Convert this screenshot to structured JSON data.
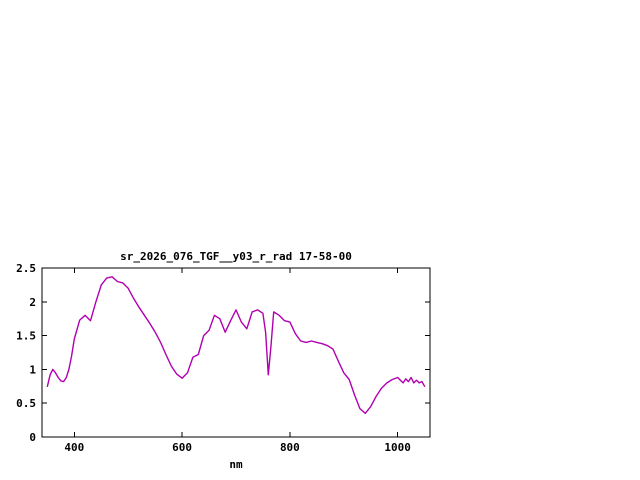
{
  "page": {
    "background": "#ffffff"
  },
  "chart": {
    "title": "sr_2026_076_TGF__y03_r_rad 17-58-00",
    "xlabel": "nm",
    "colors": {
      "line": "#b000b0",
      "axis": "#000000",
      "text": "#000000"
    }
  },
  "chart_data": {
    "type": "line",
    "title": "sr_2026_076_TGF__y03_r_rad 17-58-00",
    "xlabel": "nm",
    "ylabel": "",
    "xlim": [
      340,
      1060
    ],
    "ylim": [
      0,
      2.5
    ],
    "grid": false,
    "legend": "none",
    "xticks": {
      "values": [
        400,
        600,
        800,
        1000
      ],
      "labels": [
        "400",
        "600",
        "800",
        "1000"
      ]
    },
    "yticks": {
      "values": [
        0,
        0.5,
        1,
        1.5,
        2,
        2.5
      ],
      "labels": [
        "0",
        "0.5",
        "1",
        "1.5",
        "2",
        "2.5"
      ]
    },
    "x": [
      350,
      355,
      360,
      365,
      370,
      375,
      380,
      385,
      390,
      395,
      400,
      410,
      420,
      430,
      440,
      450,
      460,
      470,
      480,
      490,
      500,
      510,
      520,
      530,
      540,
      550,
      560,
      570,
      580,
      590,
      600,
      610,
      620,
      630,
      640,
      650,
      660,
      670,
      680,
      690,
      700,
      710,
      720,
      730,
      740,
      750,
      755,
      760,
      765,
      770,
      780,
      790,
      800,
      810,
      820,
      830,
      840,
      850,
      860,
      870,
      880,
      890,
      900,
      910,
      920,
      930,
      940,
      950,
      960,
      970,
      980,
      990,
      1000,
      1005,
      1010,
      1015,
      1020,
      1025,
      1030,
      1035,
      1040,
      1045,
      1050
    ],
    "y": [
      0.75,
      0.92,
      1.0,
      0.95,
      0.88,
      0.83,
      0.82,
      0.88,
      1.0,
      1.2,
      1.45,
      1.73,
      1.8,
      1.72,
      2.0,
      2.25,
      2.35,
      2.37,
      2.3,
      2.28,
      2.2,
      2.05,
      1.92,
      1.8,
      1.68,
      1.55,
      1.4,
      1.22,
      1.05,
      0.93,
      0.87,
      0.95,
      1.18,
      1.22,
      1.5,
      1.58,
      1.8,
      1.75,
      1.55,
      1.72,
      1.88,
      1.7,
      1.6,
      1.85,
      1.88,
      1.83,
      1.55,
      0.92,
      1.35,
      1.85,
      1.8,
      1.72,
      1.7,
      1.53,
      1.42,
      1.4,
      1.42,
      1.4,
      1.38,
      1.35,
      1.3,
      1.12,
      0.95,
      0.85,
      0.62,
      0.42,
      0.35,
      0.45,
      0.6,
      0.72,
      0.8,
      0.85,
      0.88,
      0.84,
      0.8,
      0.86,
      0.82,
      0.88,
      0.8,
      0.84,
      0.8,
      0.82,
      0.75
    ]
  }
}
